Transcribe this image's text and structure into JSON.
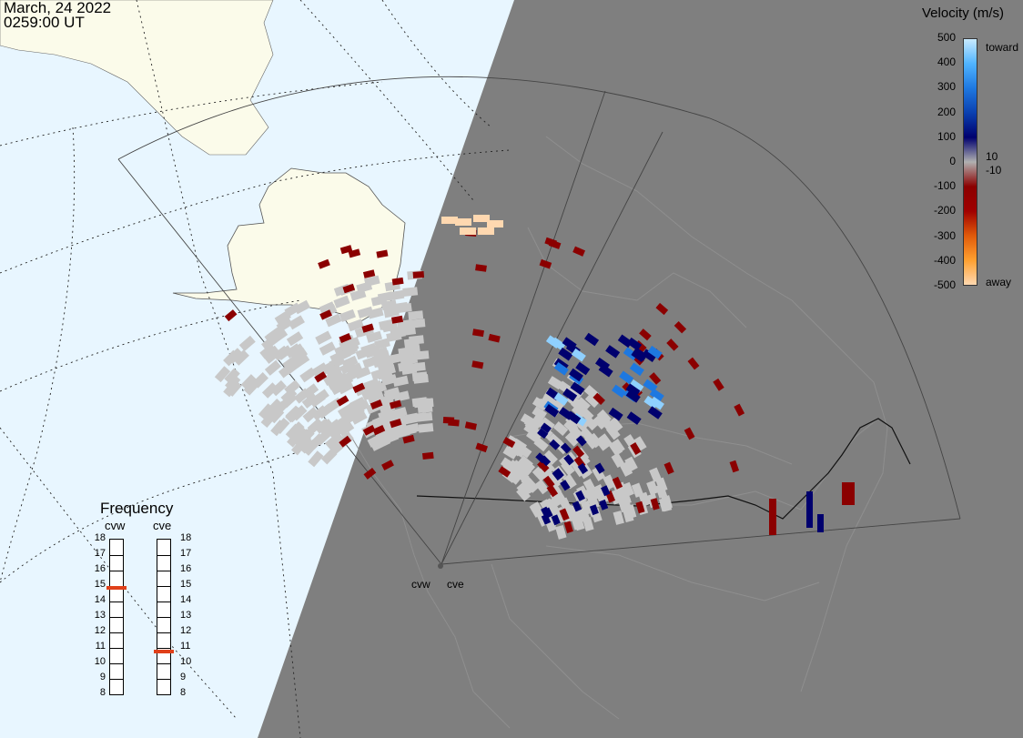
{
  "header": {
    "date": "March, 24 2022",
    "time": "0259:00 UT"
  },
  "colorbar": {
    "title": "Velocity (m/s)",
    "ticks": [
      "500",
      "400",
      "300",
      "200",
      "100",
      "0",
      "-100",
      "-200",
      "-300",
      "-400",
      "-500"
    ],
    "extra_ticks": [
      "10",
      "-10"
    ],
    "toward_label": "toward",
    "away_label": "away",
    "colors": [
      "#ffd8b0",
      "#ffa030",
      "#e05a0a",
      "#a00000",
      "#8b0000",
      "#b0b0b0",
      "#00006e",
      "#0a40b0",
      "#1e78e0",
      "#50b4ff",
      "#c8eaff"
    ]
  },
  "frequency": {
    "title": "Frequency",
    "radars": [
      "cvw",
      "cve"
    ],
    "scale": [
      "18",
      "17",
      "16",
      "15",
      "14",
      "13",
      "12",
      "11",
      "10",
      "9",
      "8"
    ],
    "cvw_mhz": 14.8,
    "cve_mhz": 10.7
  },
  "radar_labels": {
    "west": "cvw",
    "east": "cve"
  },
  "map_colors": {
    "ocean": "#e8f6ff",
    "land_day": "#fbfbea",
    "night": "#7f7f7f",
    "ground_scatter": "#c8c8c8"
  }
}
